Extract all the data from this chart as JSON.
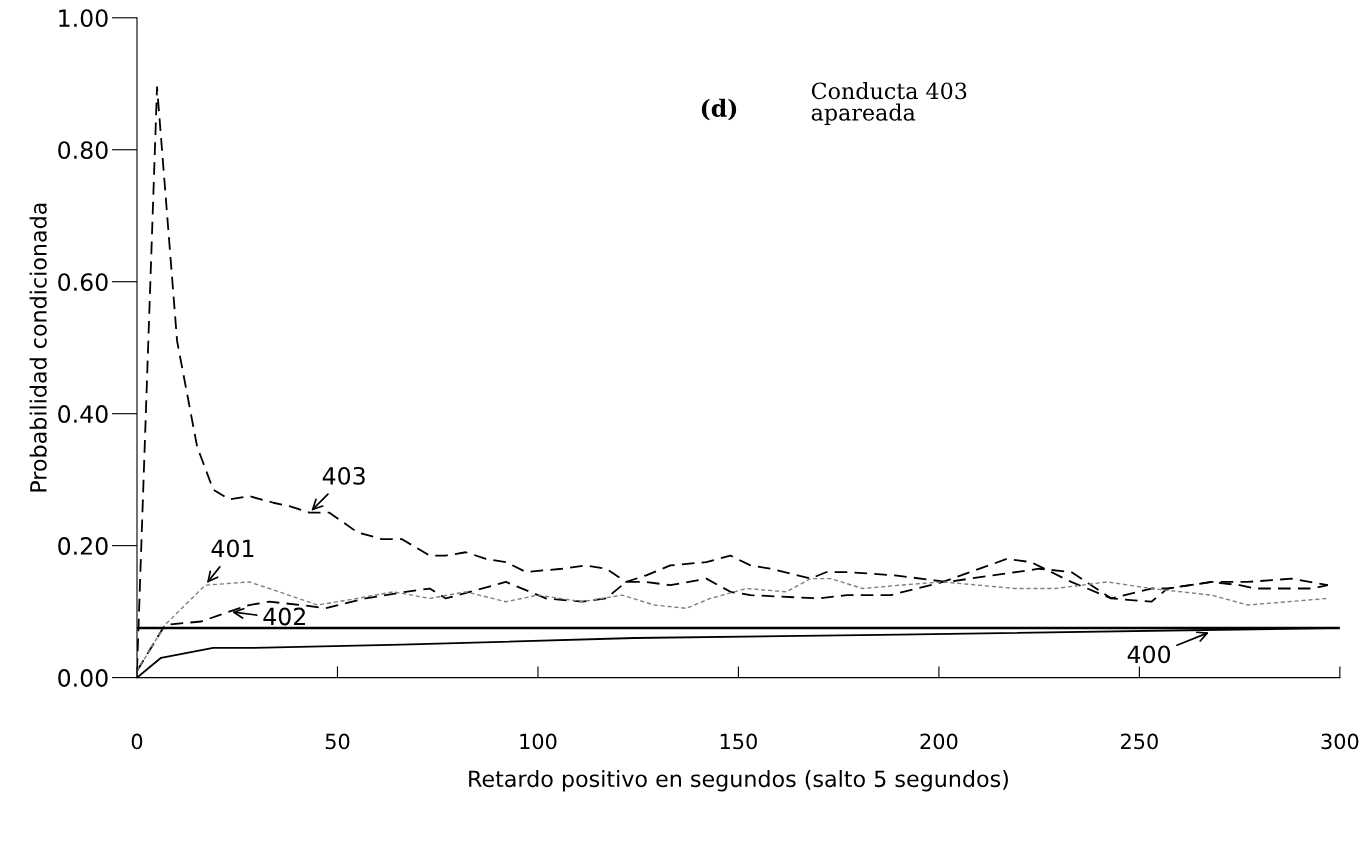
{
  "chart_data": {
    "type": "line",
    "xlabel": "Retardo positivo en segundos (salto 5 segundos)",
    "ylabel": "Probabilidad condicionada",
    "xlim": [
      0,
      300
    ],
    "xticks": [
      0,
      50,
      100,
      150,
      200,
      250,
      300
    ],
    "ylim": [
      0,
      1.0
    ],
    "yticks": [
      {
        "value": 0,
        "label": "0.00"
      },
      {
        "value": 0.2,
        "label": "0.20"
      },
      {
        "value": 0.4,
        "label": "0.40"
      },
      {
        "value": 0.6,
        "label": "0.60"
      },
      {
        "value": 0.8,
        "label": "0.80"
      },
      {
        "value": 1.0,
        "label": "1.00"
      }
    ],
    "grid": false,
    "legend": false,
    "marker": "none",
    "series": [
      {
        "color": "#000000",
        "line_style": "dashed",
        "x": [
          0,
          5,
          10,
          15,
          19,
          23,
          28,
          34,
          38,
          43,
          48,
          55,
          61,
          66,
          73,
          77,
          82,
          87,
          92,
          97,
          106,
          112,
          117,
          122,
          127,
          133,
          142,
          148,
          153,
          158,
          168,
          172,
          177,
          189,
          202,
          225,
          233,
          243,
          253,
          257,
          268,
          277,
          288,
          297
        ],
        "values": [
          0.01,
          0.895,
          0.51,
          0.35,
          0.285,
          0.27,
          0.275,
          0.265,
          0.26,
          0.25,
          0.25,
          0.22,
          0.21,
          0.21,
          0.185,
          0.185,
          0.19,
          0.18,
          0.175,
          0.16,
          0.165,
          0.17,
          0.165,
          0.145,
          0.155,
          0.17,
          0.175,
          0.185,
          0.17,
          0.165,
          0.15,
          0.16,
          0.16,
          0.155,
          0.145,
          0.165,
          0.16,
          0.12,
          0.135,
          0.135,
          0.145,
          0.145,
          0.15,
          0.14
        ]
      },
      {
        "color": "#000000",
        "line_style": "dashed",
        "x": [
          0,
          7,
          16,
          23,
          28,
          33,
          41,
          47,
          57,
          67,
          73,
          77,
          83,
          92,
          102,
          111,
          117,
          122,
          127,
          133,
          142,
          148,
          153,
          170,
          177,
          188,
          201,
          217,
          223,
          233,
          243,
          253,
          257,
          268,
          275,
          279,
          293,
          297
        ],
        "values": [
          0.01,
          0.08,
          0.085,
          0.1,
          0.11,
          0.115,
          0.11,
          0.105,
          0.12,
          0.13,
          0.135,
          0.12,
          0.13,
          0.145,
          0.12,
          0.115,
          0.12,
          0.145,
          0.145,
          0.14,
          0.15,
          0.13,
          0.125,
          0.12,
          0.125,
          0.125,
          0.145,
          0.18,
          0.175,
          0.145,
          0.12,
          0.115,
          0.135,
          0.145,
          0.14,
          0.135,
          0.135,
          0.14
        ]
      },
      {
        "color": "#808080",
        "line_style": "dotted",
        "x": [
          0,
          7,
          17,
          28,
          33,
          45,
          55,
          64,
          73,
          82,
          92,
          100,
          111,
          121,
          129,
          137,
          143,
          152,
          162,
          168,
          173,
          181,
          190,
          201,
          219,
          229,
          242,
          253,
          268,
          277,
          287,
          297
        ],
        "values": [
          0.01,
          0.08,
          0.14,
          0.145,
          0.135,
          0.11,
          0.12,
          0.13,
          0.12,
          0.13,
          0.115,
          0.125,
          0.115,
          0.125,
          0.11,
          0.105,
          0.12,
          0.135,
          0.13,
          0.15,
          0.15,
          0.135,
          0.14,
          0.145,
          0.135,
          0.135,
          0.145,
          0.135,
          0.125,
          0.11,
          0.115,
          0.12
        ]
      },
      {
        "color": "#000000",
        "line_style": "solid",
        "x": [
          0,
          6,
          19,
          28,
          66,
          124,
          190,
          297
        ],
        "values": [
          0.0,
          0.03,
          0.045,
          0.045,
          0.05,
          0.06,
          0.065,
          0.075
        ]
      }
    ],
    "ref_lines": [
      {
        "axis": "y",
        "value": 0.075,
        "color": "#000000",
        "line_style": "solid"
      }
    ],
    "annotations": [
      "(d)",
      "Conducta 403\napareada",
      {
        "text": "403",
        "x": 43,
        "y": 0.25
      },
      {
        "text": "401",
        "x": 17,
        "y": 0.14
      },
      {
        "text": "402",
        "x": 23,
        "y": 0.1
      },
      {
        "text": "400",
        "x": 268,
        "y": 0.07
      }
    ]
  }
}
